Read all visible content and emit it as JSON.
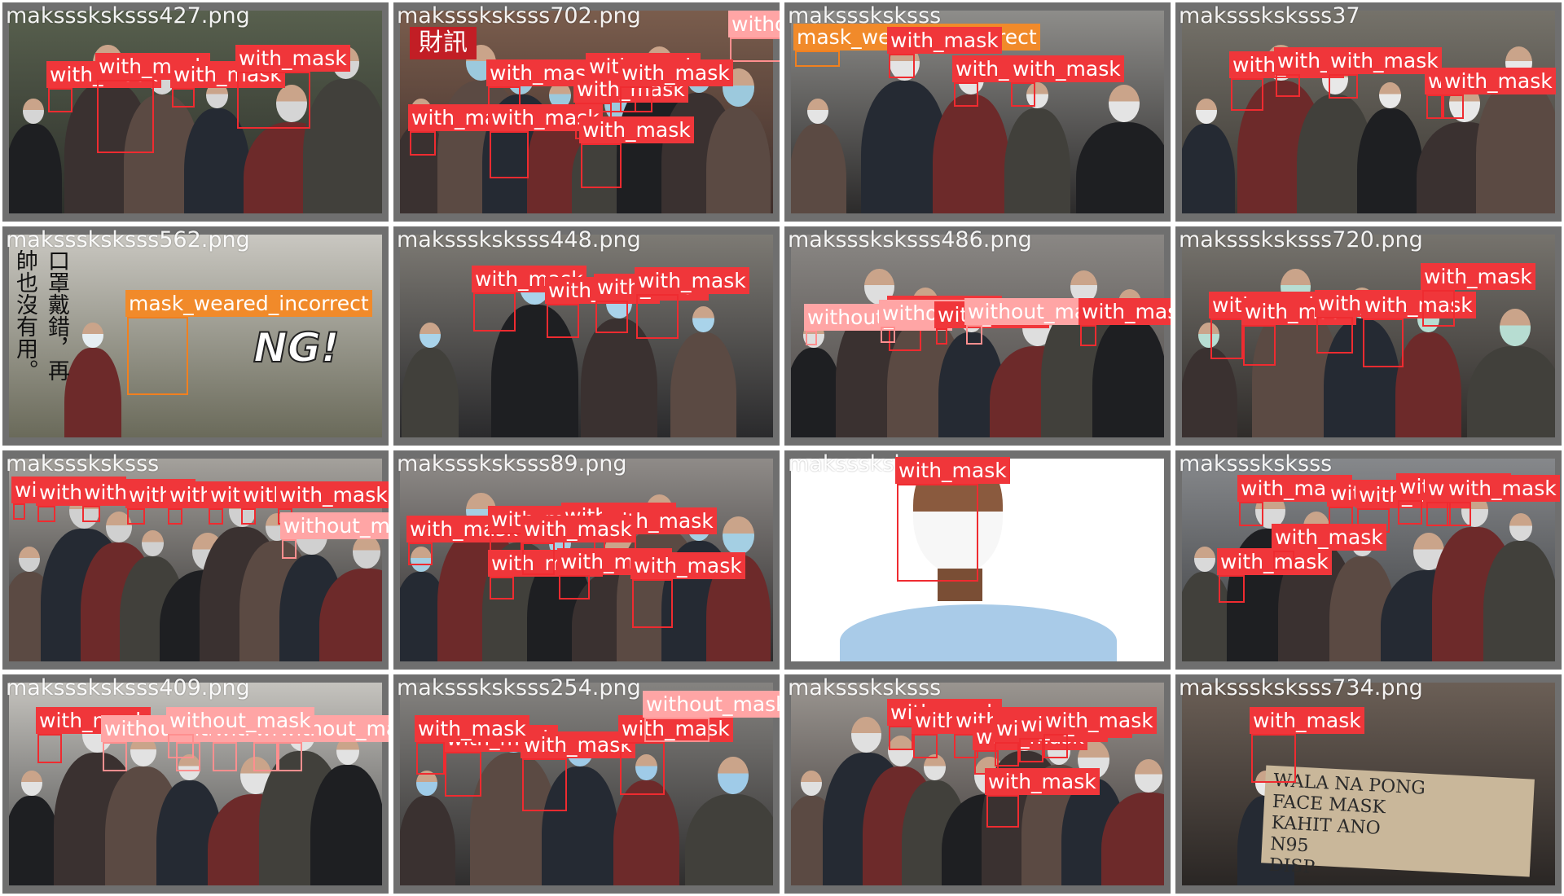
{
  "colors": {
    "with_mask": "#f0363a",
    "without_mask": "#ffa5a5",
    "mask_weared_incorrect": "#f18a2a",
    "tile_border": "#6f6f6f"
  },
  "tiles": [
    {
      "filename": "maksssksksss427.png",
      "scene": {
        "bg": [
          "#58604e",
          "#2c2f2a"
        ],
        "people": 6,
        "mask_color": "#d5d5d5"
      },
      "detections": [
        {
          "label": "with_mask",
          "cls": "with"
        },
        {
          "label": "with_mask",
          "cls": "with"
        },
        {
          "label": "with_mask",
          "cls": "with"
        },
        {
          "label": "with_mask",
          "cls": "with"
        }
      ]
    },
    {
      "filename": "maksssksksss702.png",
      "scene": {
        "bg": [
          "#7a5d4d",
          "#3d2d2a"
        ],
        "people": 8,
        "mask_color": "#9cc9dd"
      },
      "logo": "財訊",
      "detections": [
        {
          "label": "without_mask",
          "cls": "without"
        },
        {
          "label": "with_mask",
          "cls": "with"
        },
        {
          "label": "with_mask",
          "cls": "with"
        },
        {
          "label": "with_mask",
          "cls": "with"
        },
        {
          "label": "with_mask",
          "cls": "with"
        },
        {
          "label": "with_mask",
          "cls": "with"
        },
        {
          "label": "with_mask",
          "cls": "with"
        },
        {
          "label": "with_mask",
          "cls": "with"
        }
      ]
    },
    {
      "filename": "maksssksksss",
      "scene": {
        "bg": [
          "#8e8d8a",
          "#2c2b2b"
        ],
        "people": 5,
        "mask_color": "#e4e4e4"
      },
      "detections": [
        {
          "label": "mask_weared_incorrect",
          "cls": "incorrect"
        },
        {
          "label": "with_mask",
          "cls": "with"
        },
        {
          "label": "with_mask",
          "cls": "with"
        },
        {
          "label": "with_mask",
          "cls": "with"
        }
      ]
    },
    {
      "filename": "maksssksksss37",
      "scene": {
        "bg": [
          "#75726a",
          "#3a3631"
        ],
        "people": 6,
        "mask_color": "#e8e8e8"
      },
      "detections": [
        {
          "label": "with_mask",
          "cls": "with"
        },
        {
          "label": "with_mask",
          "cls": "with"
        },
        {
          "label": "with_mask",
          "cls": "with"
        },
        {
          "label": "with_mask",
          "cls": "with"
        },
        {
          "label": "with_mask",
          "cls": "with"
        }
      ]
    },
    {
      "filename": "maksssksksss562.png",
      "scene": {
        "bg": [
          "#c9c7c1",
          "#6a6a5a"
        ],
        "people": 1,
        "mask_color": "#e6eef2"
      },
      "poster_text": "口罩戴錯，再帥也沒有用。",
      "badge": "NG!",
      "detections": [
        {
          "label": "mask_weared_incorrect",
          "cls": "incorrect"
        }
      ]
    },
    {
      "filename": "maksssksksss448.png",
      "scene": {
        "bg": [
          "#7d7a74",
          "#2a2a2c"
        ],
        "people": 4,
        "mask_color": "#a9d3ea"
      },
      "detections": [
        {
          "label": "with_mask",
          "cls": "with"
        },
        {
          "label": "with_mask",
          "cls": "with"
        },
        {
          "label": "with_mask",
          "cls": "with"
        },
        {
          "label": "with_mask",
          "cls": "with"
        }
      ]
    },
    {
      "filename": "maksssksksss486.png",
      "scene": {
        "bg": [
          "#8a8784",
          "#4a4644"
        ],
        "people": 7,
        "mask_color": "#dedede"
      },
      "detections": [
        {
          "label": "with_mask",
          "cls": "with"
        },
        {
          "label": "without_mask",
          "cls": "without"
        },
        {
          "label": "without_mask",
          "cls": "without"
        },
        {
          "label": "with_mask",
          "cls": "with"
        },
        {
          "label": "without_mask",
          "cls": "without"
        },
        {
          "label": "with_mask",
          "cls": "with"
        }
      ]
    },
    {
      "filename": "maksssksksss720.png",
      "scene": {
        "bg": [
          "#76736d",
          "#2f2c2a"
        ],
        "people": 5,
        "mask_color": "#b7ddd2"
      },
      "detections": [
        {
          "label": "with_mask",
          "cls": "with"
        },
        {
          "label": "with_mask",
          "cls": "with"
        },
        {
          "label": "with_mask",
          "cls": "with"
        },
        {
          "label": "with_mask",
          "cls": "with"
        },
        {
          "label": "with_mask",
          "cls": "with"
        }
      ]
    },
    {
      "filename": "maksssksksss",
      "scene": {
        "bg": [
          "#a4a19c",
          "#2e2c2c"
        ],
        "people": 9,
        "mask_color": "#d0d0d0"
      },
      "detections": [
        {
          "label": "with_mask",
          "cls": "with"
        },
        {
          "label": "with_mask",
          "cls": "with"
        },
        {
          "label": "with_mask",
          "cls": "with"
        },
        {
          "label": "with_mask",
          "cls": "with"
        },
        {
          "label": "with_mask",
          "cls": "with"
        },
        {
          "label": "with_mask",
          "cls": "with"
        },
        {
          "label": "with_mask",
          "cls": "with"
        },
        {
          "label": "with_mask",
          "cls": "with"
        },
        {
          "label": "without_mask",
          "cls": "without"
        }
      ]
    },
    {
      "filename": "maksssksksss89.png",
      "scene": {
        "bg": [
          "#8f8b88",
          "#2c2a2b"
        ],
        "people": 8,
        "mask_color": "#a4cfe3"
      },
      "detections": [
        {
          "label": "with_mask",
          "cls": "with"
        },
        {
          "label": "with_mask",
          "cls": "with"
        },
        {
          "label": "with_mask",
          "cls": "with"
        },
        {
          "label": "with_mask",
          "cls": "with"
        },
        {
          "label": "with_mask",
          "cls": "with"
        },
        {
          "label": "with_mask",
          "cls": "with"
        },
        {
          "label": "with_mask",
          "cls": "with"
        },
        {
          "label": "with_mask",
          "cls": "with"
        }
      ]
    },
    {
      "filename": "maksssksksss",
      "scene": {
        "bg": [
          "#ffffff",
          "#ffffff"
        ],
        "people": 0,
        "mask_color": "#ffffff"
      },
      "portrait": true,
      "detections": [
        {
          "label": "with_mask",
          "cls": "with"
        }
      ]
    },
    {
      "filename": "maksssksksss",
      "scene": {
        "bg": [
          "#86888b",
          "#3b3d40"
        ],
        "people": 7,
        "mask_color": "#d9d9d9"
      },
      "detections": [
        {
          "label": "with_mask",
          "cls": "with"
        },
        {
          "label": "with_mask",
          "cls": "with"
        },
        {
          "label": "with_mask",
          "cls": "with"
        },
        {
          "label": "with_mask",
          "cls": "with"
        },
        {
          "label": "with_mask",
          "cls": "with"
        },
        {
          "label": "with_mask",
          "cls": "with"
        },
        {
          "label": "with_mask",
          "cls": "with"
        },
        {
          "label": "with_mask",
          "cls": "with"
        }
      ]
    },
    {
      "filename": "maksssksksss409.png",
      "scene": {
        "bg": [
          "#c5c3be",
          "#4a4a4a"
        ],
        "people": 7,
        "mask_color": "#e2e2e2"
      },
      "detections": [
        {
          "label": "with_mask",
          "cls": "with"
        },
        {
          "label": "without_mask",
          "cls": "without"
        },
        {
          "label": "without_mask",
          "cls": "without"
        },
        {
          "label": "without_mask",
          "cls": "without"
        },
        {
          "label": "without_mask",
          "cls": "without"
        },
        {
          "label": "without_mask",
          "cls": "without"
        },
        {
          "label": "without_mask",
          "cls": "without"
        }
      ]
    },
    {
      "filename": "maksssksksss254.png",
      "scene": {
        "bg": [
          "#858380",
          "#2f2e2e"
        ],
        "people": 5,
        "mask_color": "#9fcbe8"
      },
      "detections": [
        {
          "label": "with_mask",
          "cls": "with"
        },
        {
          "label": "with_mask",
          "cls": "with"
        },
        {
          "label": "with_mask",
          "cls": "with"
        },
        {
          "label": "with_mask",
          "cls": "with"
        },
        {
          "label": "without_mask",
          "cls": "without"
        }
      ]
    },
    {
      "filename": "maksssksksss",
      "scene": {
        "bg": [
          "#9a9590",
          "#3a3534"
        ],
        "people": 9,
        "mask_color": "#e0e0e0"
      },
      "detections": [
        {
          "label": "with_mask",
          "cls": "with"
        },
        {
          "label": "with_mask",
          "cls": "with"
        },
        {
          "label": "with_mask",
          "cls": "with"
        },
        {
          "label": "with_mask",
          "cls": "with"
        },
        {
          "label": "with_mask",
          "cls": "with"
        },
        {
          "label": "with_mask",
          "cls": "with"
        },
        {
          "label": "with_mask",
          "cls": "with"
        },
        {
          "label": "with_mask",
          "cls": "with"
        }
      ]
    },
    {
      "filename": "maksssksksss734.png",
      "scene": {
        "bg": [
          "#6b5f56",
          "#2a2624"
        ],
        "people": 1,
        "mask_color": "#e9e9e9"
      },
      "sign_text": [
        "WALA NA PONG",
        "FACE MASK",
        "KAHIT ANO",
        "N95",
        "DISP"
      ],
      "detections": [
        {
          "label": "with_mask",
          "cls": "with"
        }
      ]
    }
  ]
}
